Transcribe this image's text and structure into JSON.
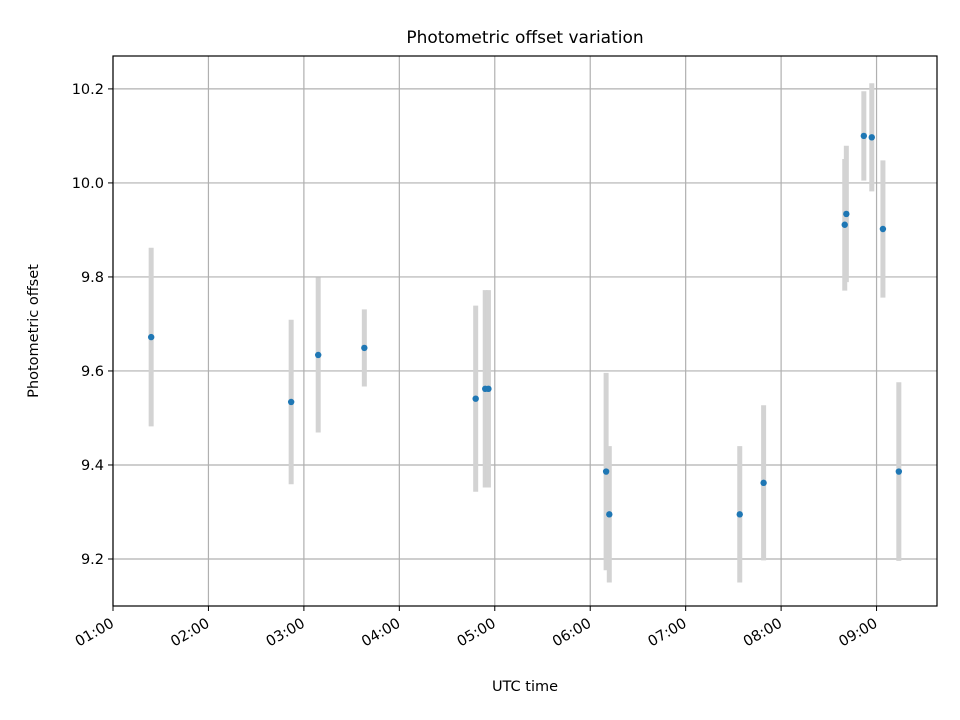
{
  "chart_data": {
    "type": "scatter",
    "title": "Photometric offset variation",
    "xlabel": "UTC time",
    "ylabel": "Photometric offset",
    "x_unit": "UTC clock time (HH:MM)",
    "xlim": [
      "01:00",
      "09:38"
    ],
    "ylim": [
      9.1,
      10.27
    ],
    "x_tick_labels": [
      "01:00",
      "02:00",
      "03:00",
      "04:00",
      "05:00",
      "06:00",
      "07:00",
      "08:00",
      "09:00"
    ],
    "y_tick_labels": [
      "9.2",
      "9.4",
      "9.6",
      "9.8",
      "10.0",
      "10.2"
    ],
    "y_ticks": [
      9.2,
      9.4,
      9.6,
      9.8,
      10.0,
      10.2
    ],
    "grid": true,
    "legend": "none",
    "marker_color": "#1f77b4",
    "errorbar_color": "#d3d3d3",
    "points": [
      {
        "x": "01:24",
        "y": 9.672,
        "yerr": 0.19
      },
      {
        "x": "02:52",
        "y": 9.534,
        "yerr": 0.175
      },
      {
        "x": "03:09",
        "y": 9.634,
        "yerr": 0.165
      },
      {
        "x": "03:38",
        "y": 9.649,
        "yerr": 0.082
      },
      {
        "x": "04:48",
        "y": 9.541,
        "yerr": 0.198
      },
      {
        "x": "04:54",
        "y": 9.562,
        "yerr": 0.21
      },
      {
        "x": "04:56",
        "y": 9.562,
        "yerr": 0.21
      },
      {
        "x": "06:10",
        "y": 9.386,
        "yerr": 0.21
      },
      {
        "x": "06:12",
        "y": 9.295,
        "yerr": 0.145
      },
      {
        "x": "07:34",
        "y": 9.295,
        "yerr": 0.145
      },
      {
        "x": "07:49",
        "y": 9.362,
        "yerr": 0.165
      },
      {
        "x": "08:40",
        "y": 9.911,
        "yerr": 0.14
      },
      {
        "x": "08:41",
        "y": 9.934,
        "yerr": 0.145
      },
      {
        "x": "08:52",
        "y": 10.1,
        "yerr": 0.095
      },
      {
        "x": "08:57",
        "y": 10.097,
        "yerr": 0.115
      },
      {
        "x": "09:04",
        "y": 9.902,
        "yerr": 0.146
      },
      {
        "x": "09:14",
        "y": 9.386,
        "yerr": 0.19
      }
    ]
  }
}
